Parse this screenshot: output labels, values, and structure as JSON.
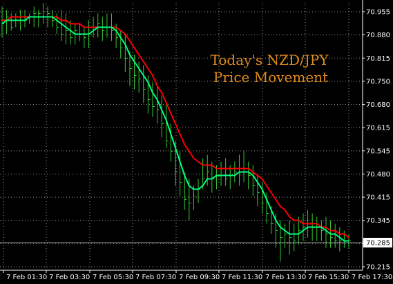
{
  "chart_data": {
    "type": "line",
    "title_lines": [
      "Today's NZD/JPY",
      "Price Movement"
    ],
    "y_ticks": [
      "70.955",
      "70.880",
      "70.815",
      "70.750",
      "70.680",
      "70.615",
      "70.545",
      "70.480",
      "70.415",
      "70.345",
      "70.285",
      "70.215"
    ],
    "x_ticks": [
      "7 Feb 01:30",
      "7 Feb 03:30",
      "7 Feb 05:30",
      "7 Feb 07:30",
      "7 Feb 09:30",
      "7 Feb 11:30",
      "7 Feb 13:30",
      "7 Feb 15:30",
      "7 Feb 17:30"
    ],
    "current_price": "70.285",
    "ylim": [
      70.215,
      70.955
    ],
    "grid": true,
    "colors": {
      "background": "#000000",
      "grid": "#9a9a9a",
      "bars": "#32cd32",
      "fast_ma": "#00ff7f",
      "slow_ma": "#ff0000",
      "title": "#e08a1a",
      "axis_text": "#ffffff"
    },
    "series": [
      {
        "type": "bars",
        "values": [
          [
            70.97,
            70.88,
            70.92
          ],
          [
            70.96,
            70.89,
            70.94
          ],
          [
            70.95,
            70.9,
            70.91
          ],
          [
            70.95,
            70.91,
            70.93
          ],
          [
            70.96,
            70.9,
            70.94
          ],
          [
            70.96,
            70.91,
            70.93
          ],
          [
            70.95,
            70.92,
            70.94
          ],
          [
            70.97,
            70.91,
            70.95
          ],
          [
            70.96,
            70.91,
            70.95
          ],
          [
            70.98,
            70.92,
            70.94
          ],
          [
            70.97,
            70.91,
            70.95
          ],
          [
            70.96,
            70.91,
            70.93
          ],
          [
            70.95,
            70.89,
            70.91
          ],
          [
            70.96,
            70.87,
            70.89
          ],
          [
            70.95,
            70.86,
            70.9
          ],
          [
            70.93,
            70.86,
            70.88
          ],
          [
            70.92,
            70.86,
            70.9
          ],
          [
            70.92,
            70.87,
            70.89
          ],
          [
            70.91,
            70.85,
            70.88
          ],
          [
            70.93,
            70.85,
            70.89
          ],
          [
            70.94,
            70.88,
            70.91
          ],
          [
            70.95,
            70.88,
            70.92
          ],
          [
            70.94,
            70.87,
            70.9
          ],
          [
            70.95,
            70.88,
            70.91
          ],
          [
            70.95,
            70.87,
            70.9
          ],
          [
            70.92,
            70.85,
            70.88
          ],
          [
            70.9,
            70.82,
            70.85
          ],
          [
            70.89,
            70.78,
            70.82
          ],
          [
            70.84,
            70.74,
            70.79
          ],
          [
            70.83,
            70.73,
            70.77
          ],
          [
            70.81,
            70.72,
            70.76
          ],
          [
            70.8,
            70.69,
            70.73
          ],
          [
            70.77,
            70.66,
            70.7
          ],
          [
            70.75,
            70.65,
            70.68
          ],
          [
            70.74,
            70.63,
            70.67
          ],
          [
            70.71,
            70.59,
            70.63
          ],
          [
            70.69,
            70.56,
            70.58
          ],
          [
            70.63,
            70.52,
            70.55
          ],
          [
            70.58,
            70.45,
            70.49
          ],
          [
            70.55,
            70.42,
            70.46
          ],
          [
            70.49,
            70.38,
            70.41
          ],
          [
            70.47,
            70.35,
            70.4
          ],
          [
            70.45,
            70.38,
            70.42
          ],
          [
            70.47,
            70.4,
            70.44
          ],
          [
            70.53,
            70.44,
            70.47
          ],
          [
            70.54,
            70.45,
            70.49
          ],
          [
            70.52,
            70.43,
            70.47
          ],
          [
            70.51,
            70.44,
            70.48
          ],
          [
            70.52,
            70.45,
            70.48
          ],
          [
            70.53,
            70.45,
            70.47
          ],
          [
            70.51,
            70.44,
            70.48
          ],
          [
            70.52,
            70.46,
            70.49
          ],
          [
            70.54,
            70.45,
            70.5
          ],
          [
            70.55,
            70.46,
            70.49
          ],
          [
            70.52,
            70.44,
            70.48
          ],
          [
            70.51,
            70.42,
            70.45
          ],
          [
            70.48,
            70.39,
            70.43
          ],
          [
            70.46,
            70.37,
            70.4
          ],
          [
            70.43,
            70.34,
            70.37
          ],
          [
            70.39,
            70.31,
            70.34
          ],
          [
            70.37,
            70.27,
            70.32
          ],
          [
            70.35,
            70.23,
            70.3
          ],
          [
            70.34,
            70.27,
            70.31
          ],
          [
            70.35,
            70.25,
            70.3
          ],
          [
            70.34,
            70.26,
            70.29
          ],
          [
            70.36,
            70.28,
            70.32
          ],
          [
            70.37,
            70.29,
            70.33
          ],
          [
            70.38,
            70.3,
            70.34
          ],
          [
            70.37,
            70.29,
            70.33
          ],
          [
            70.36,
            70.29,
            70.33
          ],
          [
            70.35,
            70.29,
            70.32
          ],
          [
            70.36,
            70.27,
            70.31
          ],
          [
            70.35,
            70.27,
            70.3
          ],
          [
            70.34,
            70.27,
            70.29
          ],
          [
            70.33,
            70.26,
            70.29
          ],
          [
            70.32,
            70.27,
            70.29
          ],
          [
            70.31,
            70.27,
            70.29
          ]
        ]
      },
      {
        "type": "line",
        "role": "fast",
        "values": [
          70.92,
          70.93,
          70.93,
          70.93,
          70.93,
          70.93,
          70.94,
          70.94,
          70.94,
          70.94,
          70.94,
          70.94,
          70.93,
          70.92,
          70.91,
          70.9,
          70.89,
          70.89,
          70.89,
          70.89,
          70.9,
          70.91,
          70.91,
          70.91,
          70.91,
          70.9,
          70.88,
          70.86,
          70.83,
          70.81,
          70.79,
          70.77,
          70.75,
          70.72,
          70.7,
          70.67,
          70.64,
          70.6,
          70.56,
          70.52,
          70.48,
          70.45,
          70.44,
          70.44,
          70.45,
          70.47,
          70.47,
          70.48,
          70.48,
          70.48,
          70.48,
          70.48,
          70.49,
          70.49,
          70.49,
          70.48,
          70.46,
          70.44,
          70.41,
          70.38,
          70.35,
          70.33,
          70.32,
          70.31,
          70.31,
          70.31,
          70.32,
          70.33,
          70.33,
          70.33,
          70.33,
          70.32,
          70.31,
          70.31,
          70.3,
          70.29,
          70.29
        ]
      },
      {
        "type": "line",
        "role": "slow",
        "values": [
          70.93,
          70.93,
          70.94,
          70.94,
          70.94,
          70.94,
          70.94,
          70.94,
          70.94,
          70.94,
          70.94,
          70.94,
          70.94,
          70.93,
          70.93,
          70.92,
          70.92,
          70.92,
          70.91,
          70.91,
          70.91,
          70.91,
          70.91,
          70.91,
          70.91,
          70.91,
          70.9,
          70.89,
          70.87,
          70.85,
          70.83,
          70.81,
          70.79,
          70.77,
          70.74,
          70.72,
          70.69,
          70.66,
          70.63,
          70.6,
          70.57,
          70.55,
          70.53,
          70.52,
          70.51,
          70.51,
          70.51,
          70.5,
          70.5,
          70.5,
          70.5,
          70.5,
          70.5,
          70.5,
          70.5,
          70.49,
          70.48,
          70.47,
          70.45,
          70.43,
          70.41,
          70.39,
          70.38,
          70.36,
          70.35,
          70.35,
          70.34,
          70.34,
          70.34,
          70.34,
          70.33,
          70.33,
          70.32,
          70.32,
          70.31,
          70.31,
          70.3
        ]
      }
    ]
  }
}
